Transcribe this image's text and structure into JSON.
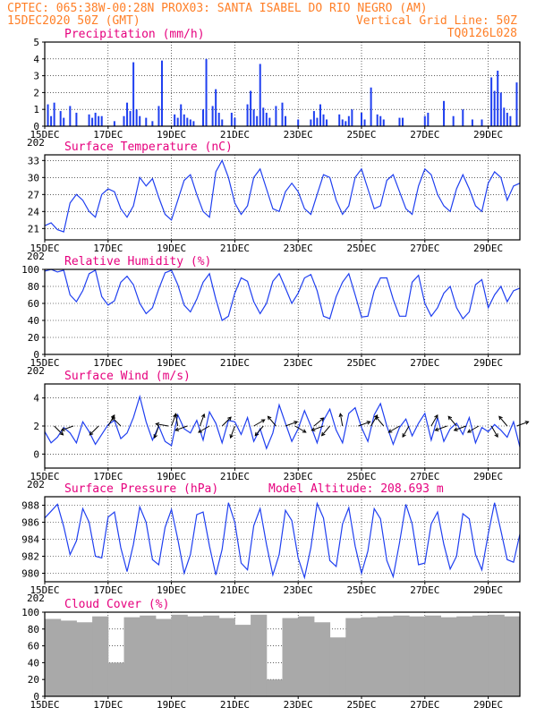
{
  "header": {
    "line1_left": "CPTEC:  065:38W-00:28N  PROX03: SANTA ISABEL DO RIO NEGRO (AM)",
    "line2_left": "15DEC2020 50Z (GMT)",
    "line2_right": "Vertical Grid Line: 50Z",
    "line3_right": "TQ0126L028"
  },
  "colors": {
    "header": "#ff7f27",
    "title": "#e6007e",
    "series": "#1f3ff0",
    "cloud": "#a9a9a9",
    "arrow": "#000000"
  },
  "x_axis": {
    "labels": [
      "15DEC",
      "17DEC",
      "19DEC",
      "21DEC",
      "23DEC",
      "25DEC",
      "27DEC",
      "29DEC"
    ],
    "label_days": [
      0,
      2,
      4,
      6,
      8,
      10,
      12,
      14
    ],
    "year_fragment": "202",
    "range_days": [
      0,
      15
    ]
  },
  "chart_data": [
    {
      "type": "bar",
      "title": "Precipitation (mm/h)",
      "ylim": [
        0,
        5
      ],
      "yticks": [
        0,
        1,
        2,
        3,
        4,
        5
      ],
      "x": [
        0.1,
        0.2,
        0.3,
        0.5,
        0.6,
        0.8,
        1.0,
        1.4,
        1.5,
        1.6,
        1.7,
        1.8,
        2.2,
        2.5,
        2.6,
        2.7,
        2.8,
        2.9,
        3.0,
        3.2,
        3.4,
        3.6,
        3.7,
        4.1,
        4.2,
        4.3,
        4.4,
        4.5,
        4.6,
        4.7,
        5.0,
        5.1,
        5.3,
        5.4,
        5.5,
        5.6,
        5.9,
        6.0,
        6.4,
        6.5,
        6.6,
        6.7,
        6.8,
        6.9,
        7.0,
        7.1,
        7.3,
        7.5,
        7.6,
        8.0,
        8.4,
        8.5,
        8.6,
        8.7,
        8.8,
        8.9,
        9.3,
        9.4,
        9.5,
        9.6,
        9.7,
        10.0,
        10.1,
        10.3,
        10.5,
        10.6,
        10.7,
        11.2,
        11.3,
        12.0,
        12.1,
        12.6,
        12.9,
        13.2,
        13.5,
        13.8,
        14.1,
        14.2,
        14.3,
        14.4,
        14.5,
        14.6,
        14.7,
        14.9
      ],
      "values": [
        1.3,
        0.6,
        1.4,
        0.9,
        0.5,
        1.2,
        0.8,
        0.7,
        0.5,
        0.8,
        0.6,
        0.6,
        0.3,
        0.6,
        1.4,
        0.9,
        3.8,
        1.0,
        0.6,
        0.5,
        0.3,
        1.2,
        3.9,
        0.7,
        0.5,
        1.3,
        0.7,
        0.5,
        0.4,
        0.3,
        1.0,
        4.0,
        1.2,
        2.2,
        0.8,
        0.4,
        0.8,
        0.5,
        1.3,
        2.1,
        1.0,
        0.6,
        3.7,
        1.1,
        0.8,
        0.5,
        1.2,
        1.4,
        0.6,
        0.4,
        0.4,
        0.9,
        0.5,
        1.3,
        0.7,
        0.4,
        0.7,
        0.4,
        0.3,
        0.6,
        1.0,
        0.8,
        0.4,
        2.3,
        0.7,
        0.6,
        0.4,
        0.5,
        0.5,
        0.6,
        0.8,
        1.5,
        0.6,
        1.0,
        0.4,
        0.4,
        2.9,
        2.1,
        3.3,
        2.0,
        1.1,
        0.8,
        0.6,
        2.6
      ]
    },
    {
      "type": "line",
      "title": "Surface Temperature (nC)",
      "ylim": [
        19,
        34
      ],
      "yticks": [
        21,
        24,
        27,
        30,
        33
      ],
      "x": [
        0,
        0.2,
        0.4,
        0.6,
        0.8,
        1.0,
        1.2,
        1.4,
        1.6,
        1.8,
        2.0,
        2.2,
        2.4,
        2.6,
        2.8,
        3.0,
        3.2,
        3.4,
        3.6,
        3.8,
        4.0,
        4.2,
        4.4,
        4.6,
        4.8,
        5.0,
        5.2,
        5.4,
        5.6,
        5.8,
        6.0,
        6.2,
        6.4,
        6.6,
        6.8,
        7.0,
        7.2,
        7.4,
        7.6,
        7.8,
        8.0,
        8.2,
        8.4,
        8.6,
        8.8,
        9.0,
        9.2,
        9.4,
        9.6,
        9.8,
        10.0,
        10.2,
        10.4,
        10.6,
        10.8,
        11.0,
        11.2,
        11.4,
        11.6,
        11.8,
        12.0,
        12.2,
        12.4,
        12.6,
        12.8,
        13.0,
        13.2,
        13.4,
        13.6,
        13.8,
        14.0,
        14.2,
        14.4,
        14.6,
        14.8,
        15.0
      ],
      "values": [
        21.5,
        22.0,
        20.8,
        20.4,
        25.5,
        27.0,
        26.0,
        24.0,
        23.0,
        27.0,
        28.0,
        27.5,
        24.5,
        23.0,
        25.0,
        30.0,
        28.5,
        29.8,
        26.5,
        23.5,
        22.5,
        26.0,
        29.5,
        30.5,
        27.0,
        24.0,
        23.0,
        31.0,
        33.0,
        30.0,
        25.5,
        23.5,
        25.0,
        30.0,
        31.5,
        28.0,
        24.5,
        24.0,
        27.5,
        29.0,
        27.5,
        24.5,
        23.5,
        27.0,
        30.5,
        30.0,
        26.0,
        23.5,
        25.0,
        30.0,
        31.5,
        28.0,
        24.5,
        25.0,
        29.5,
        30.5,
        27.5,
        24.5,
        23.5,
        28.5,
        31.5,
        30.5,
        27.0,
        25.0,
        24.0,
        28.0,
        30.5,
        28.0,
        25.0,
        24.0,
        29.0,
        31.0,
        30.0,
        26.0,
        28.5,
        29.0
      ]
    },
    {
      "type": "line",
      "title": "Relative Humidity (%)",
      "ylim": [
        0,
        100
      ],
      "yticks": [
        0,
        20,
        40,
        60,
        80,
        100
      ],
      "x": [
        0,
        0.2,
        0.4,
        0.6,
        0.8,
        1.0,
        1.2,
        1.4,
        1.6,
        1.8,
        2.0,
        2.2,
        2.4,
        2.6,
        2.8,
        3.0,
        3.2,
        3.4,
        3.6,
        3.8,
        4.0,
        4.2,
        4.4,
        4.6,
        4.8,
        5.0,
        5.2,
        5.4,
        5.6,
        5.8,
        6.0,
        6.2,
        6.4,
        6.6,
        6.8,
        7.0,
        7.2,
        7.4,
        7.6,
        7.8,
        8.0,
        8.2,
        8.4,
        8.6,
        8.8,
        9.0,
        9.2,
        9.4,
        9.6,
        9.8,
        10.0,
        10.2,
        10.4,
        10.6,
        10.8,
        11.0,
        11.2,
        11.4,
        11.6,
        11.8,
        12.0,
        12.2,
        12.4,
        12.6,
        12.8,
        13.0,
        13.2,
        13.4,
        13.6,
        13.8,
        14.0,
        14.2,
        14.4,
        14.6,
        14.8,
        15.0
      ],
      "values": [
        98,
        100,
        97,
        99,
        70,
        62,
        75,
        95,
        99,
        68,
        58,
        63,
        85,
        92,
        82,
        60,
        48,
        55,
        77,
        96,
        99,
        82,
        58,
        50,
        65,
        85,
        95,
        65,
        40,
        45,
        72,
        90,
        86,
        62,
        48,
        60,
        86,
        95,
        78,
        60,
        72,
        90,
        94,
        75,
        45,
        42,
        68,
        85,
        95,
        70,
        44,
        45,
        75,
        90,
        90,
        65,
        45,
        45,
        85,
        93,
        60,
        45,
        55,
        72,
        80,
        55,
        42,
        50,
        82,
        88,
        55,
        70,
        80,
        62,
        75,
        78
      ]
    },
    {
      "type": "line",
      "title": "Surface Wind (m/s)",
      "ylim": [
        -1,
        5
      ],
      "yticks": [
        0,
        2,
        4
      ],
      "x": [
        0,
        0.2,
        0.4,
        0.6,
        0.8,
        1.0,
        1.2,
        1.4,
        1.6,
        1.8,
        2.0,
        2.2,
        2.4,
        2.6,
        2.8,
        3.0,
        3.2,
        3.4,
        3.6,
        3.8,
        4.0,
        4.2,
        4.4,
        4.6,
        4.8,
        5.0,
        5.2,
        5.4,
        5.6,
        5.8,
        6.0,
        6.2,
        6.4,
        6.6,
        6.8,
        7.0,
        7.2,
        7.4,
        7.6,
        7.8,
        8.0,
        8.2,
        8.4,
        8.6,
        8.8,
        9.0,
        9.2,
        9.4,
        9.6,
        9.8,
        10.0,
        10.2,
        10.4,
        10.6,
        10.8,
        11.0,
        11.2,
        11.4,
        11.6,
        11.8,
        12.0,
        12.2,
        12.4,
        12.6,
        12.8,
        13.0,
        13.2,
        13.4,
        13.6,
        13.8,
        14.0,
        14.2,
        14.4,
        14.6,
        14.8,
        15.0
      ],
      "values": [
        1.6,
        0.8,
        1.2,
        1.9,
        1.5,
        0.8,
        2.3,
        1.6,
        0.7,
        1.4,
        2.1,
        2.4,
        1.1,
        1.5,
        2.6,
        4.1,
        2.3,
        1.0,
        2.0,
        0.9,
        0.6,
        2.8,
        1.8,
        1.5,
        2.4,
        1.0,
        3.0,
        2.2,
        0.8,
        2.4,
        2.3,
        1.4,
        2.6,
        0.9,
        1.8,
        0.4,
        1.5,
        3.5,
        2.2,
        0.9,
        1.8,
        3.1,
        2.0,
        0.8,
        2.4,
        3.2,
        1.7,
        0.8,
        2.9,
        3.3,
        1.9,
        0.9,
        2.8,
        3.6,
        2.0,
        0.7,
        1.9,
        2.5,
        1.3,
        2.2,
        2.9,
        1.0,
        2.6,
        0.9,
        1.8,
        2.2,
        1.4,
        2.6,
        0.8,
        1.9,
        1.6,
        2.1,
        1.7,
        1.2,
        2.3,
        0.5
      ]
    },
    {
      "type": "line",
      "title": "Surface Pressure (hPa)",
      "annotation": "Model Altitude: 208.693 m",
      "ylim": [
        979,
        989
      ],
      "yticks": [
        980,
        982,
        984,
        986,
        988
      ],
      "x": [
        0,
        0.2,
        0.4,
        0.6,
        0.8,
        1.0,
        1.2,
        1.4,
        1.6,
        1.8,
        2.0,
        2.2,
        2.4,
        2.6,
        2.8,
        3.0,
        3.2,
        3.4,
        3.6,
        3.8,
        4.0,
        4.2,
        4.4,
        4.6,
        4.8,
        5.0,
        5.2,
        5.4,
        5.6,
        5.8,
        6.0,
        6.2,
        6.4,
        6.6,
        6.8,
        7.0,
        7.2,
        7.4,
        7.6,
        7.8,
        8.0,
        8.2,
        8.4,
        8.6,
        8.8,
        9.0,
        9.2,
        9.4,
        9.6,
        9.8,
        10.0,
        10.2,
        10.4,
        10.6,
        10.8,
        11.0,
        11.2,
        11.4,
        11.6,
        11.8,
        12.0,
        12.2,
        12.4,
        12.6,
        12.8,
        13.0,
        13.2,
        13.4,
        13.6,
        13.8,
        14.0,
        14.2,
        14.4,
        14.6,
        14.8,
        15.0
      ],
      "values": [
        986.5,
        987.3,
        988.1,
        985.5,
        982.2,
        983.8,
        987.6,
        986.0,
        982.0,
        981.8,
        986.6,
        987.2,
        983.0,
        980.2,
        983.4,
        987.8,
        986.0,
        981.6,
        981.0,
        985.4,
        987.5,
        984.0,
        980.0,
        982.2,
        986.9,
        987.2,
        983.2,
        979.8,
        982.8,
        988.3,
        986.0,
        981.2,
        980.4,
        985.6,
        987.6,
        983.4,
        979.8,
        982.2,
        987.4,
        986.2,
        981.8,
        979.5,
        983.0,
        988.2,
        986.5,
        981.5,
        980.8,
        985.8,
        987.7,
        983.2,
        980.0,
        982.6,
        987.6,
        986.4,
        981.5,
        979.6,
        983.6,
        988.1,
        985.8,
        981.0,
        981.2,
        985.8,
        987.2,
        983.4,
        980.5,
        982.0,
        987.0,
        986.4,
        982.2,
        980.4,
        984.6,
        988.3,
        985.0,
        981.6,
        981.3,
        984.6
      ]
    },
    {
      "type": "bar",
      "title": "Cloud Cover (%)",
      "ylim": [
        0,
        100
      ],
      "yticks": [
        0,
        20,
        40,
        60,
        80,
        100
      ],
      "x": [
        0,
        0.5,
        1.0,
        1.5,
        2.0,
        2.5,
        3.0,
        3.5,
        4.0,
        4.5,
        5.0,
        5.5,
        6.0,
        6.5,
        7.0,
        7.5,
        8.0,
        8.5,
        9.0,
        9.5,
        10.0,
        10.5,
        11.0,
        11.5,
        12.0,
        12.5,
        13.0,
        13.5,
        14.0,
        14.5
      ],
      "values": [
        92,
        90,
        88,
        95,
        40,
        94,
        96,
        92,
        97,
        95,
        96,
        93,
        85,
        97,
        20,
        93,
        95,
        88,
        70,
        93,
        94,
        95,
        96,
        95,
        96,
        94,
        95,
        96,
        97,
        95
      ]
    }
  ]
}
